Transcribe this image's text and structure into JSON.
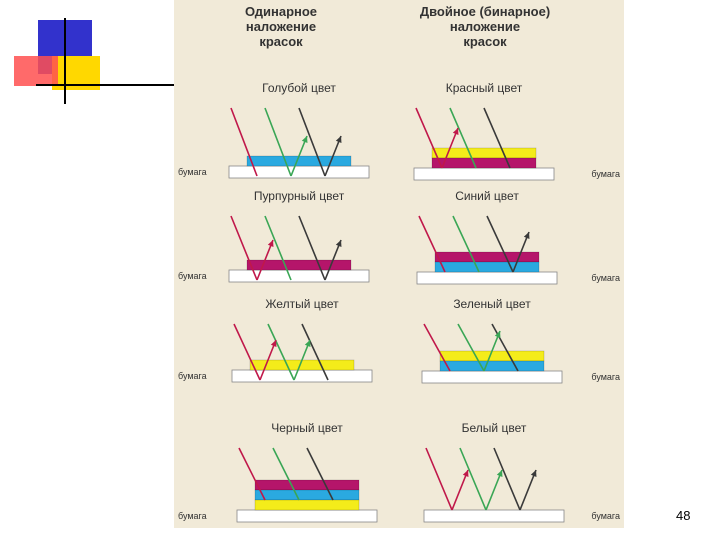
{
  "headers": {
    "single": "Одинарное\nналожение\nкрасок",
    "double": "Двойное (бинарное)\nналожение\nкрасок"
  },
  "paper_label": "бумага",
  "colors": {
    "cyan": "#2aa9e0",
    "magenta": "#b5156a",
    "yellow": "#f4ec1a",
    "paper": "#ffffff",
    "arrow_dark": "#3a3a3a",
    "arrow_green": "#3aa655",
    "arrow_red": "#c0184a",
    "background": "#f1ead8",
    "deco_blue": "#3232cc",
    "deco_yellow": "#ffd800",
    "deco_red": "#ff5050"
  },
  "panels": {
    "cyan": {
      "title": "Голубой цвет",
      "layers": [
        "cyan"
      ]
    },
    "red": {
      "title": "Красный цвет",
      "layers": [
        "yellow",
        "magenta"
      ]
    },
    "magenta": {
      "title": "Пурпурный цвет",
      "layers": [
        "magenta"
      ]
    },
    "blue": {
      "title": "Синий цвет",
      "layers": [
        "magenta",
        "cyan"
      ]
    },
    "yellow": {
      "title": "Желтый цвет",
      "layers": [
        "yellow"
      ]
    },
    "green": {
      "title": "Зеленый цвет",
      "layers": [
        "yellow",
        "cyan"
      ]
    },
    "black": {
      "title": "Черный цвет",
      "layers": [
        "magenta",
        "cyan",
        "yellow"
      ]
    },
    "white": {
      "title": "Белый цвет",
      "layers": []
    }
  },
  "page_number": "48"
}
